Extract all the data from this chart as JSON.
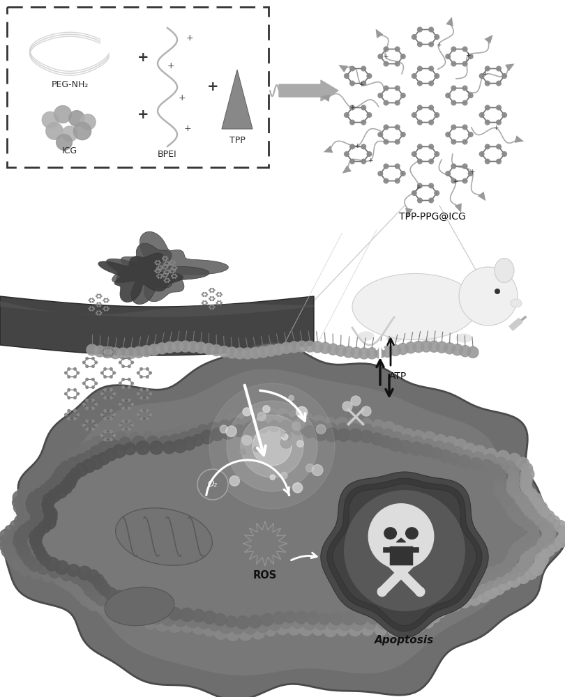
{
  "bg_color": "#ffffff",
  "box_bg": "#f8f8f8",
  "box_edge": "#333333",
  "label_peg": "PEG-NH₂",
  "label_icg": "ICG",
  "label_bpei": "BPEI",
  "label_tpp": "TPP",
  "label_tpp_ppg": "TPP-PPG@ICG",
  "label_atp": "ATP",
  "label_o2": "O₂",
  "label_ros": "ROS",
  "label_apoptosis": "Apoptosis",
  "cell_bead_color": "#888888",
  "cell_inner_color": "#777777",
  "cell_outer_color": "#666666",
  "dark_gray": "#555555",
  "medium_gray": "#888888",
  "light_gray": "#bbbbbb",
  "nuc_color": "#444444",
  "white": "#ffffff",
  "black": "#111111"
}
